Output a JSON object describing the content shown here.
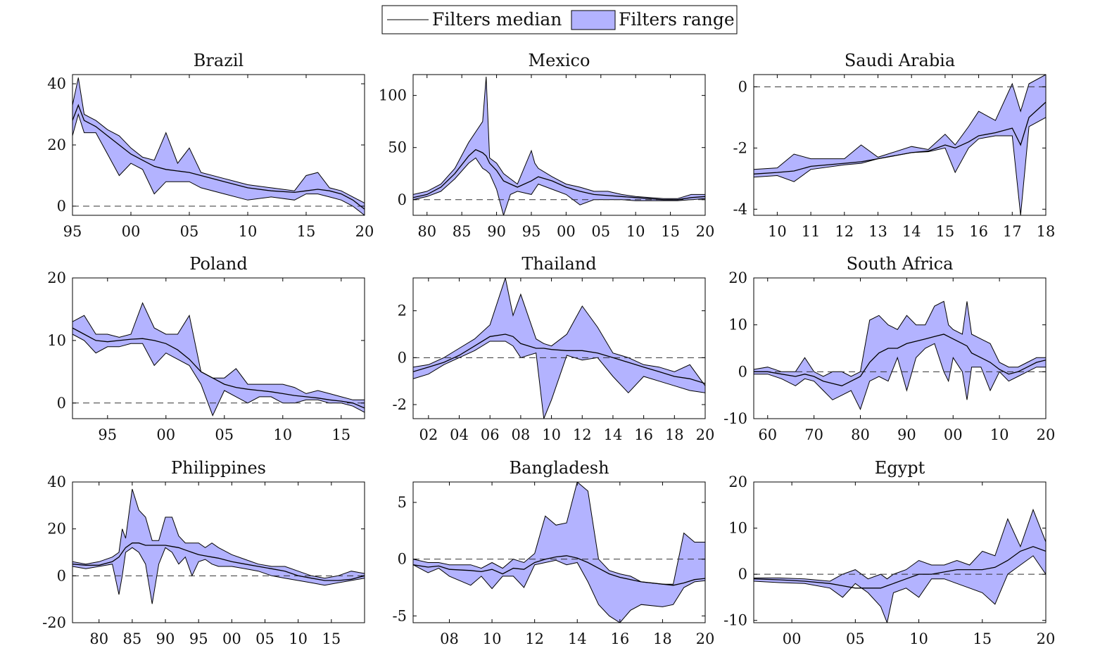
{
  "legend": {
    "median_label": "Filters median",
    "range_label": "Filters range",
    "range_fill": "#b3b3ff",
    "line_color": "#000000"
  },
  "chart_data": [
    {
      "type": "area",
      "title": "Brazil",
      "xlim": [
        1995,
        2020
      ],
      "ylim": [
        -3,
        43
      ],
      "xticks": [
        1995,
        2000,
        2005,
        2010,
        2015,
        2020
      ],
      "xtick_labels": [
        "95",
        "00",
        "05",
        "10",
        "15",
        "20"
      ],
      "yticks": [
        0,
        20,
        40
      ],
      "ytick_labels": [
        "0",
        "20",
        "40"
      ],
      "zero_line": true,
      "x": [
        1995,
        1995.5,
        1996,
        1997,
        1998,
        1999,
        2000,
        2001,
        2002,
        2003,
        2004,
        2005,
        2006,
        2008,
        2010,
        2012,
        2014,
        2015,
        2016,
        2017,
        2018,
        2019,
        2020
      ],
      "median": [
        28,
        33,
        28,
        26,
        23,
        20,
        17,
        15,
        13,
        12,
        11.5,
        11,
        10,
        8,
        6,
        5,
        4.5,
        5,
        5.5,
        5,
        4,
        2,
        -1
      ],
      "low": [
        23,
        30,
        24,
        24,
        17,
        10,
        14,
        12,
        4,
        8,
        8,
        8,
        6,
        4,
        2,
        3,
        2,
        4,
        4,
        3,
        2,
        0,
        -3
      ],
      "high": [
        33,
        42,
        30,
        28,
        25,
        23,
        19,
        16,
        15,
        24,
        14,
        19,
        11,
        9,
        7,
        6,
        5,
        10,
        11,
        6,
        5,
        3,
        1
      ]
    },
    {
      "type": "area",
      "title": "Mexico",
      "xlim": [
        1978,
        2020
      ],
      "ylim": [
        -15,
        120
      ],
      "xticks": [
        1980,
        1985,
        1990,
        1995,
        2000,
        2005,
        2010,
        2015,
        2020
      ],
      "xtick_labels": [
        "80",
        "85",
        "90",
        "95",
        "00",
        "05",
        "10",
        "15",
        "20"
      ],
      "yticks": [
        0,
        50,
        100
      ],
      "ytick_labels": [
        "0",
        "50",
        "100"
      ],
      "zero_line": true,
      "x": [
        1978,
        1980,
        1982,
        1984,
        1986,
        1987,
        1988,
        1988.5,
        1989,
        1990,
        1991,
        1992,
        1993,
        1995,
        1995.5,
        1996,
        1998,
        2000,
        2002,
        2004,
        2006,
        2008,
        2010,
        2012,
        2014,
        2016,
        2018,
        2020
      ],
      "median": [
        2,
        5,
        12,
        25,
        42,
        48,
        45,
        42,
        35,
        28,
        18,
        15,
        12,
        18,
        20,
        22,
        18,
        12,
        8,
        5,
        4,
        3,
        2,
        1,
        0,
        0,
        2,
        3
      ],
      "low": [
        0,
        3,
        8,
        20,
        35,
        40,
        30,
        28,
        25,
        10,
        -15,
        5,
        8,
        5,
        10,
        15,
        10,
        5,
        -5,
        0,
        0,
        0,
        -1,
        -1,
        -1,
        -1,
        0,
        1
      ],
      "high": [
        5,
        8,
        15,
        30,
        55,
        65,
        75,
        118,
        40,
        35,
        25,
        20,
        15,
        47,
        35,
        30,
        22,
        15,
        12,
        8,
        8,
        5,
        3,
        2,
        1,
        1,
        5,
        5
      ]
    },
    {
      "type": "area",
      "title": "Saudi Arabia",
      "xlim": [
        2009.3,
        2018
      ],
      "ylim": [
        -4.2,
        0.4
      ],
      "xticks": [
        2010,
        2011,
        2012,
        2013,
        2014,
        2015,
        2016,
        2017,
        2018
      ],
      "xtick_labels": [
        "10",
        "11",
        "12",
        "13",
        "14",
        "15",
        "16",
        "17",
        "18"
      ],
      "yticks": [
        -4,
        -2,
        0
      ],
      "ytick_labels": [
        "-4",
        "-2",
        "0"
      ],
      "zero_line": true,
      "x": [
        2009.3,
        2010,
        2010.5,
        2011,
        2012,
        2012.5,
        2013,
        2014,
        2014.5,
        2015,
        2015.3,
        2015.7,
        2016,
        2016.5,
        2017,
        2017.25,
        2017.5,
        2018
      ],
      "median": [
        -2.85,
        -2.8,
        -2.75,
        -2.6,
        -2.5,
        -2.45,
        -2.35,
        -2.15,
        -2.1,
        -1.9,
        -2.0,
        -1.8,
        -1.6,
        -1.5,
        -1.35,
        -1.9,
        -1.0,
        -0.5
      ],
      "low": [
        -2.95,
        -2.9,
        -3.1,
        -2.7,
        -2.55,
        -2.5,
        -2.35,
        -2.15,
        -2.12,
        -2.0,
        -2.8,
        -2.0,
        -1.7,
        -1.6,
        -1.6,
        -4.2,
        -1.3,
        -1.0
      ],
      "high": [
        -2.7,
        -2.65,
        -2.2,
        -2.35,
        -2.35,
        -1.9,
        -2.3,
        -1.95,
        -2.05,
        -1.55,
        -1.9,
        -1.3,
        -0.8,
        -1.1,
        0.1,
        -0.8,
        0.1,
        0.4
      ]
    },
    {
      "type": "area",
      "title": "Poland",
      "xlim": [
        1992,
        2017
      ],
      "ylim": [
        -2.5,
        20
      ],
      "xticks": [
        1995,
        2000,
        2005,
        2010,
        2015
      ],
      "xtick_labels": [
        "95",
        "00",
        "05",
        "10",
        "15"
      ],
      "yticks": [
        0,
        10,
        20
      ],
      "ytick_labels": [
        "0",
        "10",
        "20"
      ],
      "zero_line": true,
      "x": [
        1992,
        1993,
        1994,
        1995,
        1996,
        1997,
        1998,
        1999,
        2000,
        2001,
        2002,
        2003,
        2004,
        2005,
        2006,
        2007,
        2008,
        2009,
        2010,
        2011,
        2012,
        2013,
        2014,
        2015,
        2016,
        2017
      ],
      "median": [
        12,
        11,
        10,
        9.8,
        10,
        10.2,
        10.3,
        10,
        9.5,
        8.5,
        7,
        5,
        4,
        3,
        2.5,
        2.2,
        2,
        1.8,
        1.5,
        1.2,
        1,
        0.8,
        0.5,
        0.3,
        0,
        -0.8
      ],
      "low": [
        11,
        10,
        8,
        9,
        9,
        9.5,
        9.5,
        6,
        8,
        7,
        6,
        3,
        -2,
        2,
        1,
        0,
        1,
        1,
        0,
        0,
        0.5,
        0.5,
        0,
        0,
        -0.5,
        -1.5
      ],
      "high": [
        13,
        14,
        11,
        11,
        10.5,
        11,
        16,
        12,
        11,
        11,
        14,
        5,
        4,
        4,
        5.5,
        3,
        3,
        3,
        3,
        2.5,
        1.5,
        2,
        1.5,
        1,
        0.5,
        0.5
      ]
    },
    {
      "type": "area",
      "title": "Thailand",
      "xlim": [
        2001,
        2020
      ],
      "ylim": [
        -2.6,
        3.4
      ],
      "xticks": [
        2002,
        2004,
        2006,
        2008,
        2010,
        2012,
        2014,
        2016,
        2018,
        2020
      ],
      "xtick_labels": [
        "02",
        "04",
        "06",
        "08",
        "10",
        "12",
        "14",
        "16",
        "18",
        "20"
      ],
      "yticks": [
        -2,
        0,
        2
      ],
      "ytick_labels": [
        "-2",
        "0",
        "2"
      ],
      "zero_line": true,
      "x": [
        2001,
        2002,
        2003,
        2004,
        2005,
        2006,
        2007,
        2007.5,
        2008,
        2009,
        2009.5,
        2010,
        2011,
        2012,
        2013,
        2014,
        2015,
        2016,
        2017,
        2018,
        2019,
        2020
      ],
      "median": [
        -0.6,
        -0.4,
        -0.2,
        0.1,
        0.5,
        0.9,
        1.0,
        0.9,
        0.6,
        0.4,
        0.4,
        0.35,
        0.3,
        0.3,
        0.2,
        0.0,
        -0.2,
        -0.4,
        -0.6,
        -0.8,
        -0.9,
        -1.1
      ],
      "low": [
        -0.9,
        -0.7,
        -0.3,
        0.0,
        0.3,
        0.7,
        0.7,
        0.5,
        0.0,
        0.2,
        -2.6,
        -1.8,
        0.1,
        -0.1,
        0.0,
        -0.8,
        -1.5,
        -0.8,
        -1.0,
        -1.2,
        -1.4,
        -1.5
      ],
      "high": [
        -0.4,
        -0.3,
        0.0,
        0.4,
        0.8,
        1.4,
        3.4,
        1.8,
        2.7,
        0.8,
        0.6,
        0.5,
        1.0,
        2.2,
        1.3,
        0.2,
        0.0,
        -0.3,
        -0.4,
        -0.6,
        -0.3,
        -1.2
      ]
    },
    {
      "type": "area",
      "title": "South Africa",
      "xlim": [
        1957,
        2020
      ],
      "ylim": [
        -10,
        20
      ],
      "xticks": [
        1960,
        1970,
        1980,
        1990,
        2000,
        2010,
        2020
      ],
      "xtick_labels": [
        "60",
        "70",
        "80",
        "90",
        "00",
        "10",
        "20"
      ],
      "yticks": [
        -10,
        0,
        10,
        20
      ],
      "ytick_labels": [
        "-10",
        "0",
        "10",
        "20"
      ],
      "zero_line": true,
      "x": [
        1957,
        1960,
        1963,
        1966,
        1968,
        1970,
        1972,
        1974,
        1976,
        1978,
        1980,
        1982,
        1984,
        1986,
        1988,
        1990,
        1992,
        1994,
        1996,
        1998,
        1999,
        2000,
        2002,
        2003,
        2004,
        2006,
        2008,
        2010,
        2012,
        2014,
        2016,
        2018,
        2020
      ],
      "median": [
        0,
        0,
        -0.5,
        -1,
        -0.5,
        -1,
        -2,
        -2.5,
        -3,
        -2,
        -1,
        2,
        4,
        5,
        5,
        6,
        6.5,
        7,
        7.5,
        8,
        7.5,
        7,
        6,
        5.5,
        4,
        3,
        2,
        0.5,
        -0.5,
        0,
        1,
        2,
        2.5
      ],
      "low": [
        -0.5,
        -0.5,
        -1.5,
        -3,
        -1.5,
        -2,
        -4,
        -6,
        -5,
        -4,
        -8,
        -2,
        -1,
        -2,
        3,
        -4,
        3,
        5,
        6,
        0,
        -2,
        3,
        0,
        -6,
        1,
        1,
        -4,
        0,
        -2,
        -1,
        0,
        1,
        1
      ],
      "high": [
        0.5,
        1,
        0,
        0,
        3,
        0,
        -1,
        0,
        0,
        -1,
        0,
        11,
        12,
        10,
        9,
        12,
        10,
        10,
        14,
        15,
        10,
        9,
        8,
        15,
        8,
        7,
        6,
        2,
        1,
        1,
        2,
        3,
        3
      ]
    },
    {
      "type": "area",
      "title": "Philippines",
      "xlim": [
        1976,
        2020
      ],
      "ylim": [
        -20,
        40
      ],
      "xticks": [
        1980,
        1985,
        1990,
        1995,
        2000,
        2005,
        2010,
        2015
      ],
      "xtick_labels": [
        "80",
        "85",
        "90",
        "95",
        "00",
        "05",
        "10",
        "15"
      ],
      "yticks": [
        -20,
        0,
        20,
        40
      ],
      "ytick_labels": [
        "-20",
        "0",
        "20",
        "40"
      ],
      "zero_line": true,
      "x": [
        1976,
        1978,
        1980,
        1982,
        1983,
        1983.5,
        1984,
        1985,
        1986,
        1987,
        1988,
        1989,
        1990,
        1991,
        1992,
        1993,
        1994,
        1995,
        1996,
        1997,
        1998,
        2000,
        2002,
        2004,
        2006,
        2008,
        2010,
        2012,
        2014,
        2016,
        2018,
        2020
      ],
      "median": [
        5,
        4.5,
        4.5,
        6,
        8,
        10,
        12,
        14,
        14,
        13,
        13,
        13,
        13,
        12.5,
        12,
        11,
        10,
        9,
        8.5,
        8,
        7.5,
        6,
        5,
        4,
        3,
        2,
        0,
        -1,
        -2,
        -2,
        -1.5,
        0
      ],
      "low": [
        4,
        3,
        4,
        5,
        -8,
        0,
        10,
        12,
        10,
        5,
        -12,
        5,
        12,
        10,
        5,
        8,
        0,
        6,
        7,
        5,
        4,
        4,
        3,
        2,
        0,
        -1,
        -2,
        -3,
        -4,
        -3,
        -2,
        -1
      ],
      "high": [
        6,
        5,
        6,
        8,
        10,
        20,
        16,
        37,
        28,
        25,
        15,
        15,
        25,
        25,
        17,
        14,
        14,
        14,
        12,
        14,
        12,
        9,
        7,
        5,
        4,
        4,
        2,
        0,
        -1,
        0,
        2,
        1
      ]
    },
    {
      "type": "area",
      "title": "Bangladesh",
      "xlim": [
        2006.3,
        2020
      ],
      "ylim": [
        -5.6,
        6.8
      ],
      "xticks": [
        2008,
        2010,
        2012,
        2014,
        2016,
        2018,
        2020
      ],
      "xtick_labels": [
        "08",
        "10",
        "12",
        "14",
        "16",
        "18",
        "20"
      ],
      "yticks": [
        -5,
        0,
        5
      ],
      "ytick_labels": [
        "-5",
        "0",
        "5"
      ],
      "zero_line": true,
      "x": [
        2006.3,
        2007,
        2007.5,
        2008,
        2009,
        2009.5,
        2010,
        2010.5,
        2011,
        2011.5,
        2012,
        2012.5,
        2013,
        2013.5,
        2014,
        2014.5,
        2015,
        2015.5,
        2016,
        2016.5,
        2017,
        2018,
        2018.5,
        2019,
        2019.5,
        2020
      ],
      "median": [
        -0.5,
        -0.7,
        -0.6,
        -0.9,
        -1.0,
        -1.1,
        -0.9,
        -1.3,
        -0.8,
        -0.9,
        -0.3,
        0.0,
        0.2,
        0.3,
        0.1,
        -0.3,
        -0.8,
        -1.3,
        -1.6,
        -1.8,
        -2.0,
        -2.2,
        -2.3,
        -2.1,
        -1.8,
        -1.7
      ],
      "low": [
        -0.5,
        -1.2,
        -0.8,
        -1.5,
        -2.3,
        -1.5,
        -2.6,
        -1.5,
        -1.5,
        -2.5,
        -0.5,
        -0.3,
        -0.1,
        -0.5,
        -0.3,
        -2.0,
        -4.0,
        -5.0,
        -5.6,
        -4.5,
        -4.0,
        -4.2,
        -4.0,
        -2.5,
        -2.0,
        -1.9
      ],
      "high": [
        0.0,
        -0.3,
        -0.3,
        -0.5,
        -0.5,
        -0.8,
        -0.3,
        -0.8,
        0.0,
        -0.3,
        0.5,
        3.8,
        3.0,
        3.2,
        6.8,
        6.0,
        0.0,
        -1.0,
        -1.3,
        -1.5,
        -2.0,
        -2.2,
        -2.2,
        2.3,
        1.5,
        1.5
      ]
    },
    {
      "type": "area",
      "title": "Egypt",
      "xlim": [
        1997,
        2020
      ],
      "ylim": [
        -10.5,
        20
      ],
      "xticks": [
        2000,
        2005,
        2010,
        2015,
        2020
      ],
      "xtick_labels": [
        "00",
        "05",
        "10",
        "15",
        "20"
      ],
      "yticks": [
        -10,
        0,
        10,
        20
      ],
      "ytick_labels": [
        "-10",
        "0",
        "10",
        "20"
      ],
      "zero_line": true,
      "x": [
        1997,
        1999,
        2001,
        2003,
        2004,
        2005,
        2006,
        2007,
        2007.5,
        2008,
        2009,
        2010,
        2011,
        2012,
        2013,
        2014,
        2015,
        2016,
        2017,
        2018,
        2019,
        2020
      ],
      "median": [
        -1,
        -1.2,
        -1.5,
        -2,
        -2.5,
        -3,
        -3,
        -3,
        -2.5,
        -2,
        -1,
        0,
        0,
        0.5,
        1,
        1,
        1,
        1.5,
        3,
        5,
        6,
        5
      ],
      "low": [
        -1.5,
        -1.8,
        -2,
        -3,
        -5,
        -2,
        -4,
        -7,
        -10.5,
        -4,
        -3,
        -5,
        -1,
        -1,
        -2,
        -3,
        -4,
        -6.5,
        0,
        2,
        4,
        0
      ],
      "high": [
        -0.8,
        -0.8,
        -1,
        -1.5,
        0,
        1,
        -1,
        0,
        -1,
        0,
        1,
        3,
        2,
        2,
        3,
        2,
        5,
        4,
        12,
        6,
        14,
        7
      ]
    }
  ]
}
